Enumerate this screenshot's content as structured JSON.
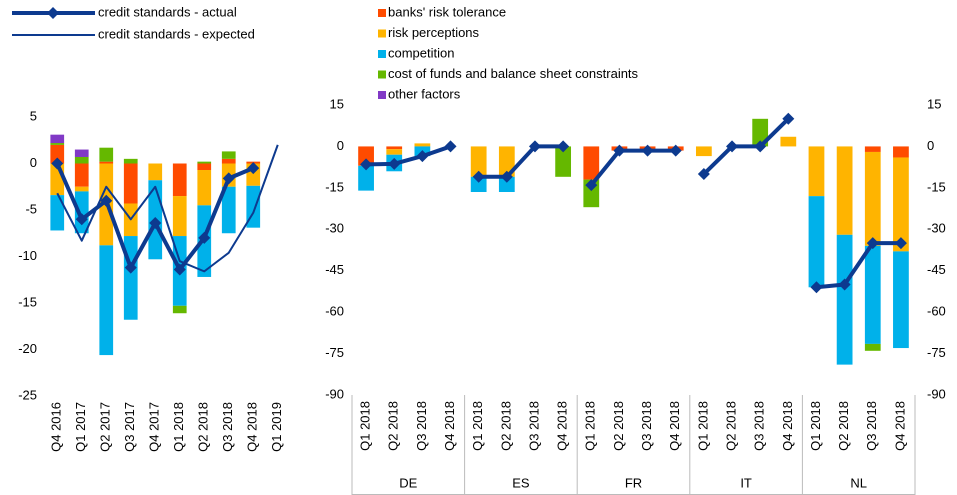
{
  "chart_data": [
    {
      "type": "bar",
      "stacked": true,
      "categories": [
        "Q4 2016",
        "Q1 2017",
        "Q2 2017",
        "Q3 2017",
        "Q4 2017",
        "Q1 2018",
        "Q2 2018",
        "Q3 2018",
        "Q4 2018",
        "Q1 2019"
      ],
      "series": [
        {
          "name": "banks' risk tolerance",
          "color": "#ff4b00",
          "values": [
            2.0,
            -2.5,
            0.2,
            -4.3,
            null,
            -3.5,
            -0.7,
            0.5,
            0.2,
            null
          ]
        },
        {
          "name": "risk perceptions",
          "color": "#ffb400",
          "values": [
            -3.4,
            -0.5,
            -8.8,
            -3.5,
            -1.8,
            -4.3,
            -3.8,
            -2.5,
            -2.4,
            null
          ]
        },
        {
          "name": "competition",
          "color": "#00b1ea",
          "values": [
            -3.8,
            -4.5,
            -11.8,
            -9.0,
            -8.5,
            -7.5,
            -7.7,
            -5.0,
            -4.5,
            null
          ]
        },
        {
          "name": "cost of funds and balance sheet constraints",
          "color": "#65b800",
          "values": [
            0.2,
            0.7,
            1.5,
            0.5,
            null,
            -0.8,
            0.2,
            0.8,
            null,
            null
          ]
        },
        {
          "name": "other factors",
          "color": "#8139c6",
          "values": [
            0.9,
            0.8,
            null,
            null,
            null,
            null,
            null,
            null,
            null,
            null
          ]
        },
        {
          "name": "credit standards - actual",
          "type": "line",
          "marker": "diamond",
          "width": 4,
          "color": "#0d3a8f",
          "values": [
            0.0,
            -6.0,
            -4.0,
            -11.2,
            -6.4,
            -11.4,
            -8.0,
            -1.6,
            -0.5,
            null
          ]
        },
        {
          "name": "credit standards - expected",
          "type": "line",
          "width": 2,
          "color": "#0d3a8f",
          "values": [
            -3.2,
            -8.3,
            -2.5,
            -6.0,
            -2.5,
            -10.5,
            -11.6,
            -9.6,
            -5.3,
            2.0
          ]
        }
      ],
      "ylim": [
        -25,
        5
      ],
      "yticks": [
        -25,
        -20,
        -15,
        -10,
        -5,
        0,
        5
      ]
    },
    {
      "type": "bar",
      "stacked": true,
      "groups": [
        {
          "name": "DE",
          "categories": [
            "Q1 2018",
            "Q2 2018",
            "Q3 2018",
            "Q4 2018"
          ]
        },
        {
          "name": "ES",
          "categories": [
            "Q1 2018",
            "Q2 2018",
            "Q3 2018",
            "Q4 2018"
          ]
        },
        {
          "name": "FR",
          "categories": [
            "Q1 2018",
            "Q2 2018",
            "Q3 2018",
            "Q4 2018"
          ]
        },
        {
          "name": "IT",
          "categories": [
            "Q1 2018",
            "Q2 2018",
            "Q3 2018",
            "Q4 2018"
          ]
        },
        {
          "name": "NL",
          "categories": [
            "Q1 2018",
            "Q2 2018",
            "Q3 2018",
            "Q4 2018"
          ]
        }
      ],
      "series": [
        {
          "color": "#ff4b00",
          "values": [
            -7,
            -1,
            null,
            null,
            null,
            null,
            null,
            null,
            -12,
            -1.5,
            -1.5,
            -1.5,
            null,
            null,
            null,
            null,
            null,
            null,
            -2,
            -4
          ]
        },
        {
          "color": "#ffb400",
          "values": [
            null,
            -2,
            1.1,
            null,
            -11,
            -11,
            null,
            null,
            null,
            null,
            null,
            null,
            -3.5,
            null,
            null,
            3.5,
            -18,
            -32,
            -34,
            -34
          ]
        },
        {
          "color": "#00b1ea",
          "values": [
            -9,
            -6,
            -3.5,
            null,
            -5.5,
            -5.5,
            null,
            null,
            null,
            null,
            null,
            null,
            null,
            null,
            null,
            null,
            -33,
            -47,
            -35.5,
            -35
          ]
        },
        {
          "color": "#65b800",
          "values": [
            null,
            null,
            null,
            null,
            null,
            null,
            null,
            -11,
            -10,
            null,
            null,
            null,
            null,
            null,
            10,
            null,
            null,
            null,
            -2.5,
            null
          ]
        },
        {
          "type": "line",
          "marker": "diamond",
          "width": 4,
          "color": "#0d3a8f",
          "values": [
            -6.5,
            -6.3,
            -3.5,
            0,
            -11,
            -11,
            0,
            0,
            -14,
            -1.5,
            -1.5,
            -1.5,
            -10,
            0,
            0,
            10,
            -51,
            -50,
            -35,
            -35
          ]
        }
      ],
      "ylim": [
        -90,
        15
      ],
      "yticks": [
        -90,
        -75,
        -60,
        -45,
        -30,
        -15,
        0,
        15
      ],
      "y2lim": [
        -90,
        15
      ],
      "y2ticks": [
        -90,
        -75,
        -60,
        -45,
        -30,
        -15,
        0,
        15
      ]
    }
  ]
}
